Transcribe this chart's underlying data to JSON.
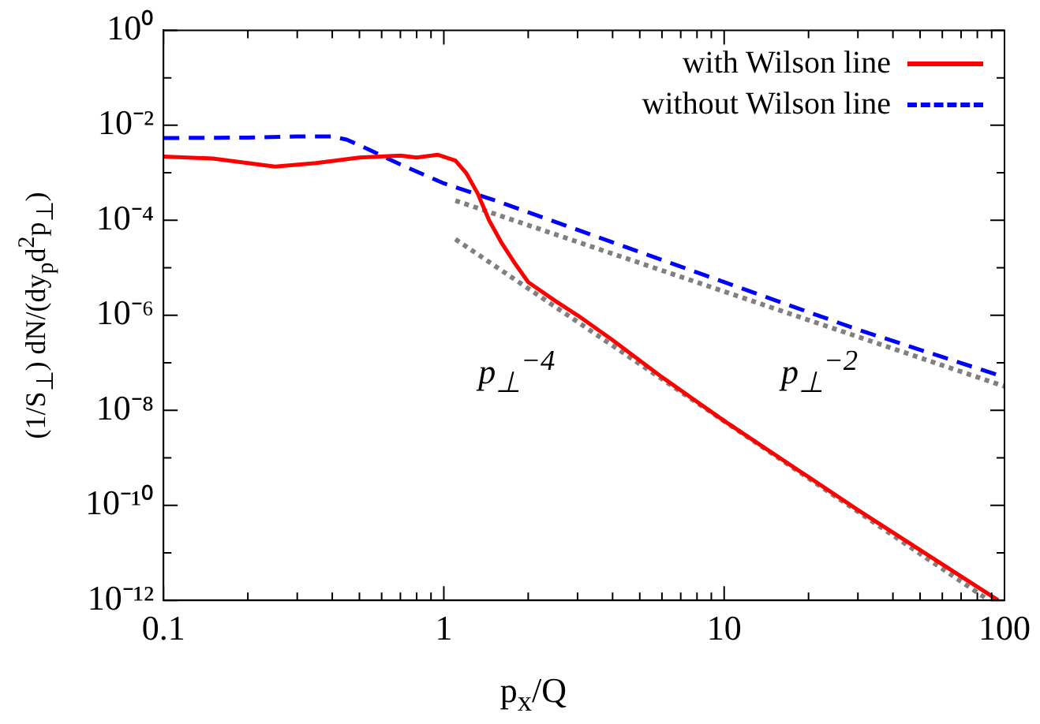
{
  "chart_data": {
    "type": "line",
    "xlabel": "p$_{x}$/Q",
    "ylabel": "(1/S$_{⊥}$) dN/(dy$_{p}$d$^{2}$p$_{⊥}$)",
    "log": "xy",
    "xlim": [
      0.1,
      100
    ],
    "xticks": [
      0.1,
      {
        "value": 0.2,
        "label": null
      },
      {
        "value": 0.3,
        "label": null
      },
      {
        "value": 0.4,
        "label": null
      },
      {
        "value": 0.5,
        "label": null
      },
      {
        "value": 0.6,
        "label": null
      },
      {
        "value": 0.7,
        "label": null
      },
      {
        "value": 0.8,
        "label": null
      },
      {
        "value": 0.9,
        "label": null
      },
      1,
      {
        "value": 2,
        "label": null
      },
      {
        "value": 3,
        "label": null
      },
      {
        "value": 4,
        "label": null
      },
      {
        "value": 5,
        "label": null
      },
      {
        "value": 6,
        "label": null
      },
      {
        "value": 7,
        "label": null
      },
      {
        "value": 8,
        "label": null
      },
      {
        "value": 9,
        "label": null
      },
      10,
      {
        "value": 20,
        "label": null
      },
      {
        "value": 30,
        "label": null
      },
      {
        "value": 40,
        "label": null
      },
      {
        "value": 50,
        "label": null
      },
      {
        "value": 60,
        "label": null
      },
      {
        "value": 70,
        "label": null
      },
      {
        "value": 80,
        "label": null
      },
      {
        "value": 90,
        "label": null
      },
      100
    ],
    "ylim": [
      1e-12,
      1
    ],
    "yticks": [
      {
        "value": 1e-12,
        "label": "10⁻¹²"
      },
      {
        "value": 1e-11,
        "label": null
      },
      {
        "value": 1e-10,
        "label": "10⁻¹⁰"
      },
      {
        "value": 1e-09,
        "label": null
      },
      {
        "value": 1e-08,
        "label": "10⁻⁸"
      },
      {
        "value": 1e-07,
        "label": null
      },
      {
        "value": 1e-06,
        "label": "10⁻⁶"
      },
      {
        "value": 1e-05,
        "label": null
      },
      {
        "value": 0.0001,
        "label": "10⁻⁴"
      },
      {
        "value": 0.001,
        "label": null
      },
      {
        "value": 0.01,
        "label": "10⁻²"
      },
      {
        "value": 0.1,
        "label": null
      },
      {
        "value": 1,
        "label": "10⁰"
      }
    ],
    "grid": false,
    "legend": "top right",
    "marker": "none",
    "series": [
      {
        "name": "with Wilson line",
        "color": "#ff0000",
        "line_style": "solid",
        "x": [
          0.1,
          0.15,
          0.25,
          0.35,
          0.5,
          0.7,
          0.8,
          0.95,
          1.1,
          1.2,
          1.32,
          1.45,
          1.6,
          1.8,
          2,
          2.5,
          3,
          4,
          6,
          10,
          30,
          95
        ],
        "values": [
          0.0022,
          0.002,
          0.00135,
          0.0016,
          0.0021,
          0.0023,
          0.0021,
          0.0024,
          0.0018,
          0.001,
          0.00037,
          0.0001,
          3.5e-05,
          1.2e-05,
          5e-06,
          2e-06,
          1e-06,
          3e-07,
          5e-08,
          6e-09,
          8e-11,
          1e-12
        ]
      },
      {
        "name": "without Wilson line",
        "color": "#0000ff",
        "line_style": "dashed",
        "x": [
          0.1,
          0.2,
          0.3,
          0.4,
          0.45,
          0.5,
          0.7,
          1,
          1.5,
          3,
          10,
          30,
          100
        ],
        "values": [
          0.0054,
          0.0055,
          0.0058,
          0.0058,
          0.005,
          0.0038,
          0.0015,
          0.0006,
          0.00027,
          6.3e-05,
          5e-06,
          5e-07,
          5e-08
        ]
      },
      {
        "color": "#808080",
        "line_style": "dotted",
        "x": [
          1.1,
          100
        ],
        "values": [
          0.00026,
          3.2e-08
        ]
      },
      {
        "color": "#808080",
        "line_style": "dotted",
        "x": [
          1.1,
          88
        ],
        "values": [
          4e-05,
          1e-12
        ]
      }
    ],
    "annotations": [
      "p$_{⊥}$$^{−4}$",
      "p$_{⊥}$$^{−2}$"
    ]
  }
}
